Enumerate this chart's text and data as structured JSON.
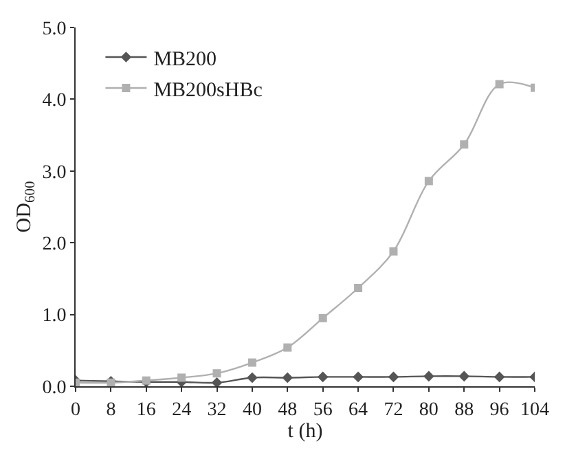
{
  "chart_data": {
    "type": "line",
    "xlabel": "t (h)",
    "ylabel": "OD$_{600}$",
    "x": [
      0,
      8,
      16,
      24,
      32,
      40,
      48,
      56,
      64,
      72,
      80,
      88,
      96,
      104
    ],
    "series": [
      {
        "name": "MB200",
        "color": "#555555",
        "marker": "diamond",
        "values": [
          0.08,
          0.07,
          0.06,
          0.06,
          0.05,
          0.12,
          0.12,
          0.13,
          0.13,
          0.13,
          0.14,
          0.14,
          0.13,
          0.13
        ]
      },
      {
        "name": "MB200sHBc",
        "color": "#b0b0b0",
        "marker": "square",
        "values": [
          0.05,
          0.05,
          0.08,
          0.12,
          0.18,
          0.33,
          0.54,
          0.95,
          1.37,
          1.88,
          2.86,
          3.37,
          4.21,
          4.16
        ]
      }
    ],
    "xlim": [
      0,
      104
    ],
    "xticks": [
      0,
      8,
      16,
      24,
      32,
      40,
      48,
      56,
      64,
      72,
      80,
      88,
      96,
      104
    ],
    "ylim": [
      0,
      5
    ],
    "yticks": [
      {
        "value": 0,
        "label": "0.0"
      },
      {
        "value": 1,
        "label": "1.0"
      },
      {
        "value": 2,
        "label": "2.0"
      },
      {
        "value": 3,
        "label": "3.0"
      },
      {
        "value": 4,
        "label": "4.0"
      },
      {
        "value": 5,
        "label": "5.0"
      }
    ],
    "legend": "top left",
    "line_style": "solid"
  }
}
